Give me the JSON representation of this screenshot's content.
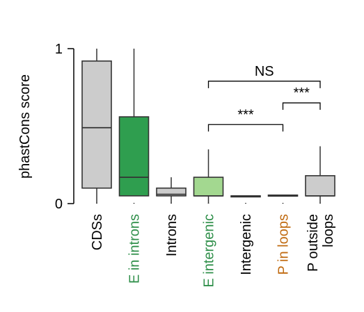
{
  "chart_data": {
    "type": "box",
    "ylabel": "phastCons score",
    "ylim": [
      0,
      1
    ],
    "yticks": [
      "0",
      "1"
    ],
    "colors": {
      "grey": "#cccccc",
      "dark_green": "#2f9e4f",
      "light_green": "#a3d890",
      "label_black": "#000000",
      "label_green": "#2f8f4a",
      "label_orange": "#c06a10",
      "stroke": "#333333"
    },
    "categories": [
      {
        "label": "CDSs",
        "label_color": "label_black",
        "fill": "grey",
        "whisker_low": 0.0,
        "q1": 0.1,
        "median": 0.49,
        "q3": 0.92,
        "whisker_high": 1.0
      },
      {
        "label": "E in introns",
        "label_color": "label_green",
        "fill": "dark_green",
        "whisker_low": 0.05,
        "q1": 0.05,
        "median": 0.17,
        "q3": 0.56,
        "whisker_high": 1.0
      },
      {
        "label": "Introns",
        "label_color": "label_black",
        "fill": "grey",
        "whisker_low": 0.0,
        "q1": 0.05,
        "median": 0.06,
        "q3": 0.1,
        "whisker_high": 0.17
      },
      {
        "label": "E intergenic",
        "label_color": "label_green",
        "fill": "light_green",
        "whisker_low": 0.0,
        "q1": 0.05,
        "median": 0.05,
        "q3": 0.17,
        "whisker_high": 0.35
      },
      {
        "label": "Intergenic",
        "label_color": "label_black",
        "fill": "grey",
        "whisker_low": 0.05,
        "q1": 0.05,
        "median": 0.05,
        "q3": 0.05,
        "whisker_high": 0.05
      },
      {
        "label": "P in loops",
        "label_color": "label_orange",
        "fill": "grey",
        "whisker_low": 0.05,
        "q1": 0.05,
        "median": 0.05,
        "q3": 0.055,
        "whisker_high": 0.055
      },
      {
        "label": [
          "P outside",
          "loops"
        ],
        "label_color": "label_black",
        "fill": "grey",
        "whisker_low": 0.0,
        "q1": 0.05,
        "median": 0.05,
        "q3": 0.18,
        "whisker_high": 0.37
      }
    ],
    "annotations": [
      {
        "text": "NS",
        "from": 3,
        "to": 6,
        "level": 0.79
      },
      {
        "text": "***",
        "from": 5,
        "to": 6,
        "level": 0.65
      },
      {
        "text": "***",
        "from": 3,
        "to": 5,
        "level": 0.51
      }
    ]
  }
}
